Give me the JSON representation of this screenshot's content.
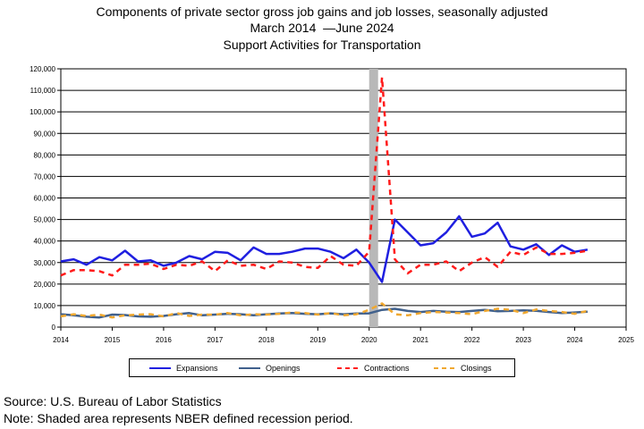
{
  "header": {
    "title": "Components of private sector gross job gains and job losses, seasonally adjusted",
    "subtitle_start": "March 2014",
    "subtitle_end": "June 2024",
    "subtitle_industry": "Support Activities for Transportation"
  },
  "footer": {
    "source": "Source: U.S. Bureau of Labor Statistics",
    "note": "Note: Shaded area represents NBER defined recession period."
  },
  "colors": {
    "expansions": "#1f1fe0",
    "openings": "#40608c",
    "contractions": "#ff1a1a",
    "closings": "#f0a830",
    "recession": "#b8b8b8"
  },
  "chart_data": {
    "type": "line",
    "title": "Components of private sector gross job gains and job losses, seasonally adjusted",
    "xlim": [
      2014,
      2025
    ],
    "ylim": [
      0,
      120000
    ],
    "x_ticks": [
      "2014",
      "2015",
      "2016",
      "2017",
      "2018",
      "2019",
      "2020",
      "2021",
      "2022",
      "2023",
      "2024",
      "2025"
    ],
    "y_ticks": [
      "0",
      "10,000",
      "20,000",
      "30,000",
      "40,000",
      "50,000",
      "60,000",
      "70,000",
      "80,000",
      "90,000",
      "100,000",
      "110,000",
      "120,000"
    ],
    "grid": true,
    "legend_position": "bottom",
    "recession_band": [
      2020.0,
      2020.17
    ],
    "x": [
      2014.0,
      2014.25,
      2014.5,
      2014.75,
      2015.0,
      2015.25,
      2015.5,
      2015.75,
      2016.0,
      2016.25,
      2016.5,
      2016.75,
      2017.0,
      2017.25,
      2017.5,
      2017.75,
      2018.0,
      2018.25,
      2018.5,
      2018.75,
      2019.0,
      2019.25,
      2019.5,
      2019.75,
      2020.0,
      2020.25,
      2020.5,
      2020.75,
      2021.0,
      2021.25,
      2021.5,
      2021.75,
      2022.0,
      2022.25,
      2022.5,
      2022.75,
      2023.0,
      2023.25,
      2023.5,
      2023.75,
      2024.0,
      2024.25
    ],
    "series": [
      {
        "name": "Expansions",
        "style": "solid",
        "values": [
          30500,
          31500,
          29000,
          32500,
          31000,
          35500,
          30500,
          31000,
          28500,
          30000,
          33000,
          31500,
          35000,
          34500,
          31000,
          37000,
          34000,
          34000,
          35000,
          36500,
          36500,
          35000,
          32000,
          36000,
          30000,
          21000,
          50000,
          44000,
          38000,
          39000,
          44000,
          51500,
          42000,
          43500,
          48500,
          37500,
          36000,
          38500,
          33500,
          38000,
          35000,
          36000
        ]
      },
      {
        "name": "Openings",
        "style": "solid",
        "values": [
          6000,
          5500,
          4800,
          4500,
          5800,
          5600,
          5000,
          4800,
          5200,
          6000,
          6500,
          5500,
          5800,
          6200,
          6000,
          5500,
          6000,
          6300,
          6500,
          6200,
          6000,
          6400,
          6000,
          6300,
          6400,
          8000,
          8500,
          7500,
          7000,
          7500,
          7200,
          7000,
          7500,
          8000,
          7400,
          7500,
          7800,
          7600,
          7000,
          6500,
          6800,
          7200
        ]
      },
      {
        "name": "Contractions",
        "style": "dashed",
        "values": [
          24000,
          26500,
          26500,
          26000,
          24000,
          29000,
          29000,
          29500,
          27000,
          29000,
          28500,
          30500,
          26000,
          31000,
          28500,
          29000,
          27000,
          30500,
          30000,
          28000,
          27500,
          33000,
          29000,
          28500,
          35000,
          116000,
          31500,
          25000,
          29000,
          29000,
          30500,
          26000,
          30000,
          32500,
          28000,
          35000,
          33500,
          37000,
          34000,
          34000,
          34500,
          35500
        ]
      },
      {
        "name": "Closings",
        "style": "dashed",
        "values": [
          5000,
          6000,
          5200,
          5800,
          4500,
          5500,
          5800,
          6000,
          5000,
          6500,
          5200,
          5800,
          5800,
          6500,
          5500,
          6000,
          5800,
          6200,
          6800,
          6500,
          5800,
          6500,
          5500,
          6000,
          8000,
          11000,
          6000,
          5500,
          6500,
          7000,
          6800,
          6500,
          6000,
          7500,
          8500,
          8000,
          6500,
          8200,
          7500,
          7000,
          6200,
          7500
        ]
      }
    ]
  }
}
